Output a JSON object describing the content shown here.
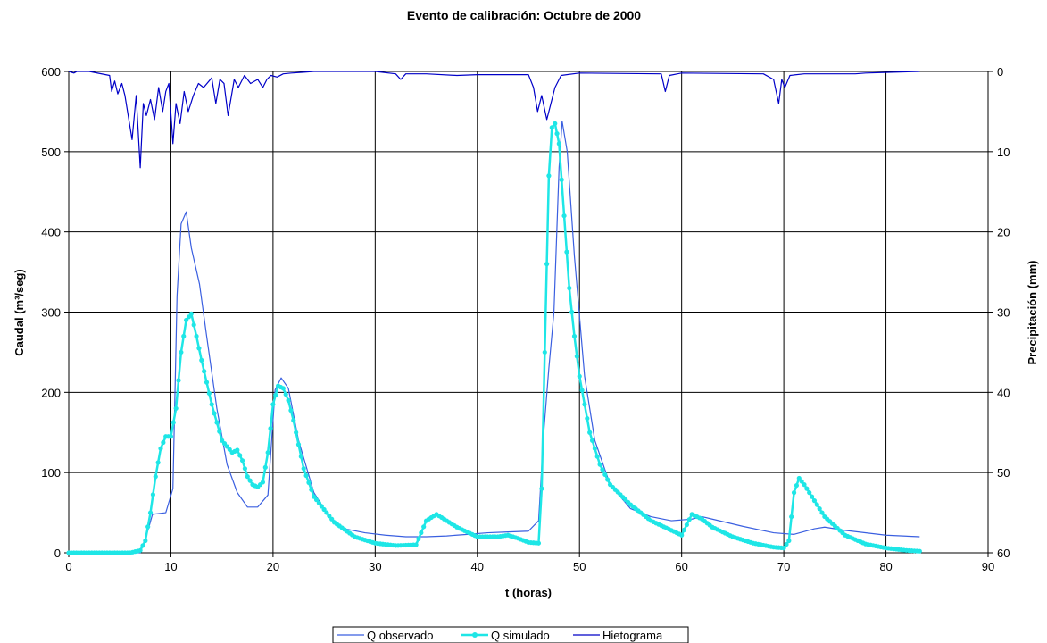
{
  "chart_data": {
    "type": "line",
    "title": "Evento de calibración: Octubre de 2000",
    "xlabel": "t (horas)",
    "ylabel": "Caudal (m³/seg)",
    "y2label": "Precipitación (mm)",
    "xlim": [
      0,
      90
    ],
    "ylim": [
      0,
      600
    ],
    "y2lim": [
      60,
      0
    ],
    "y2_inverted": true,
    "xticks": [
      "0",
      "10",
      "20",
      "30",
      "40",
      "50",
      "60",
      "70",
      "80",
      "90"
    ],
    "yticks": [
      "0",
      "100",
      "200",
      "300",
      "400",
      "500",
      "600"
    ],
    "y2ticks": [
      "60",
      "50",
      "40",
      "30",
      "20",
      "10",
      "0"
    ],
    "grid": true,
    "legend_position": "bottom",
    "series": [
      {
        "name": "Q observado",
        "color": "#3a5fe0",
        "marker": false,
        "x": [
          0,
          7,
          7.8,
          8.2,
          9.5,
          10.2,
          10.6,
          11,
          11.5,
          12,
          12.8,
          13.5,
          14.5,
          15.5,
          16.5,
          17.5,
          18.5,
          19.5,
          20.2,
          20.8,
          21.5,
          22.5,
          24,
          25.5,
          27,
          29,
          31,
          33,
          35,
          37,
          39,
          41,
          43,
          45,
          46,
          46.5,
          47,
          47.5,
          48,
          48.3,
          48.8,
          49.5,
          50.5,
          51.5,
          53,
          55,
          57,
          59,
          61,
          62,
          63,
          66,
          69,
          71,
          73,
          74,
          76,
          80,
          83.3
        ],
        "y": [
          0,
          0,
          30,
          48,
          50,
          80,
          320,
          410,
          425,
          380,
          335,
          270,
          180,
          110,
          75,
          57,
          57,
          72,
          203,
          218,
          205,
          140,
          75,
          45,
          30,
          25,
          22,
          20,
          20,
          21,
          23,
          25,
          26,
          27,
          40,
          150,
          230,
          300,
          480,
          538,
          500,
          370,
          220,
          140,
          85,
          55,
          45,
          40,
          42,
          45,
          42,
          33,
          25,
          23,
          30,
          32,
          28,
          22,
          20
        ]
      },
      {
        "name": "Q simulado",
        "color": "#1ee6e6",
        "marker": true,
        "x": [
          0,
          6,
          7,
          7.5,
          8,
          8.5,
          9,
          9.5,
          10,
          10.5,
          11,
          11.5,
          12,
          12.5,
          13,
          14,
          15,
          16,
          16.5,
          17,
          17.5,
          18,
          18.5,
          19,
          19.5,
          20,
          20.5,
          21,
          21.5,
          22,
          23,
          24,
          26,
          28,
          30,
          32,
          34,
          35,
          36,
          37,
          38,
          40,
          42,
          43,
          44,
          45,
          46,
          46.3,
          46.6,
          47,
          47.3,
          47.6,
          48,
          48.5,
          49,
          49.5,
          50,
          51,
          52,
          53,
          55,
          57,
          59,
          60,
          61,
          62,
          63,
          65,
          67,
          69,
          70,
          70.5,
          71,
          71.5,
          72,
          73,
          74,
          76,
          78,
          80,
          82,
          83.3
        ],
        "y": [
          0,
          0,
          3,
          15,
          50,
          95,
          130,
          145,
          145,
          180,
          250,
          290,
          298,
          270,
          240,
          185,
          140,
          125,
          128,
          115,
          95,
          85,
          82,
          88,
          125,
          185,
          208,
          205,
          190,
          165,
          105,
          70,
          38,
          20,
          12,
          9,
          10,
          40,
          48,
          40,
          32,
          20,
          20,
          22,
          18,
          13,
          12,
          80,
          250,
          470,
          530,
          535,
          510,
          420,
          330,
          270,
          220,
          150,
          110,
          85,
          60,
          40,
          28,
          22,
          48,
          42,
          32,
          20,
          12,
          7,
          6,
          15,
          75,
          93,
          85,
          65,
          45,
          22,
          11,
          6,
          3,
          2
        ]
      },
      {
        "name": "Hietograma",
        "color": "#0000c8",
        "marker": false,
        "axis": "right",
        "x": [
          0,
          0.5,
          0.8,
          1.2,
          2,
          4,
          4.2,
          4.5,
          4.8,
          5.2,
          5.5,
          6.2,
          6.6,
          7,
          7.3,
          7.6,
          8,
          8.4,
          8.8,
          9.2,
          9.5,
          9.8,
          10.2,
          10.5,
          10.9,
          11.3,
          11.7,
          12.2,
          12.7,
          13.2,
          14,
          14.4,
          14.8,
          15.2,
          15.6,
          16.2,
          16.6,
          17.2,
          17.8,
          18.5,
          19,
          19.4,
          19.8,
          20.4,
          21,
          21.8,
          23,
          24,
          30,
          32,
          32.5,
          33,
          35,
          38,
          40,
          45,
          45.5,
          45.9,
          46.3,
          46.8,
          47.2,
          47.6,
          48.2,
          50,
          58,
          58.4,
          58.8,
          60,
          68,
          69,
          69.5,
          69.8,
          70.1,
          70.6,
          72,
          77,
          78,
          83.3
        ],
        "y": [
          0,
          0.2,
          0,
          0,
          0,
          0.5,
          2.5,
          1.2,
          2.8,
          1.5,
          3,
          8.5,
          3,
          12,
          4,
          5.5,
          3.5,
          6,
          2,
          5,
          2.5,
          1.5,
          9,
          4,
          6.5,
          2.5,
          5,
          3,
          1.5,
          2,
          0.8,
          4,
          1,
          1.5,
          5.5,
          1,
          2,
          0.5,
          1.5,
          1,
          2,
          1,
          0.5,
          0.7,
          0.3,
          0.2,
          0.1,
          0,
          0,
          0.3,
          1,
          0.3,
          0.3,
          0.5,
          0.4,
          0.4,
          2,
          5,
          3,
          6,
          4,
          2,
          0.5,
          0.2,
          0.3,
          2.5,
          0.5,
          0.2,
          0.3,
          1,
          4,
          1,
          2,
          0.5,
          0.3,
          0.3,
          0.2,
          0
        ]
      }
    ]
  }
}
